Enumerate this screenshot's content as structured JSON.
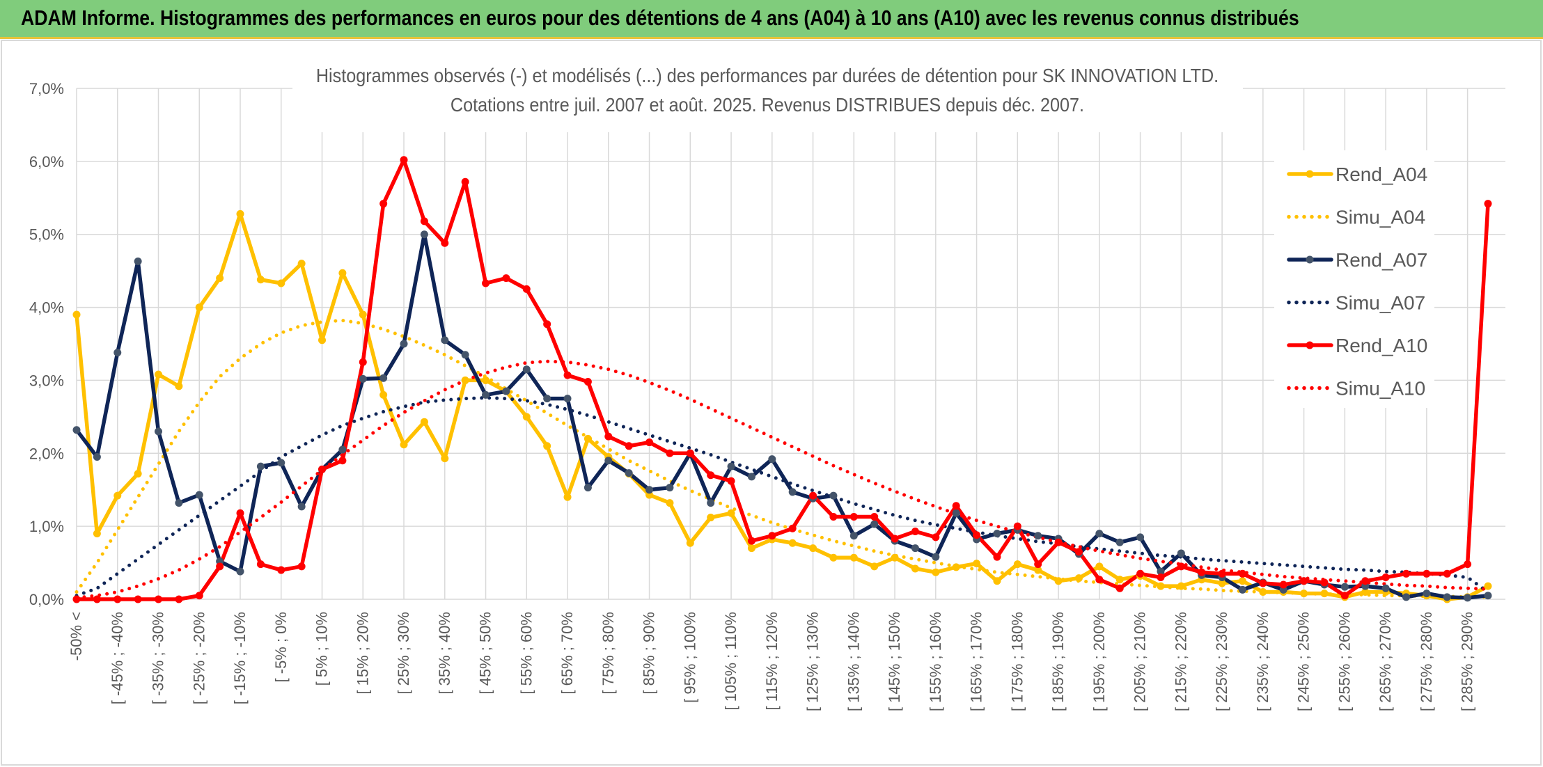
{
  "header": {
    "title": "ADAM Informe. Histogrammes des performances en euros pour des détentions de 4 ans (A04) à 10 ans (A10) avec les revenus connus distribués"
  },
  "chart_data": {
    "type": "line",
    "title": "Histogrammes observés (-) et modélisés (...) des performances par durées de détention pour SK INNOVATION LTD.",
    "subtitle": "Cotations entre juil. 2007 et août. 2025. Revenus DISTRIBUES depuis déc. 2007.",
    "categories": [
      "-50% <",
      null,
      "[ -45% ; -40%",
      null,
      "[ -35% ; -30%",
      null,
      "[ -25% ; -20%",
      null,
      "[ -15% ; -10%",
      null,
      "[ -5% ; 0%",
      null,
      "[ 5% ; 10%",
      null,
      "[ 15% ; 20%",
      null,
      "[ 25% ; 30%",
      null,
      "[ 35% ; 40%",
      null,
      "[ 45% ; 50%",
      null,
      "[ 55% ; 60%",
      null,
      "[ 65% ; 70%",
      null,
      "[ 75% ; 80%",
      null,
      "[ 85% ; 90%",
      null,
      "[ 95% ; 100%",
      null,
      "[ 105% ; 110%",
      null,
      "[ 115% ; 120%",
      null,
      "[ 125% ; 130%",
      null,
      "[ 135% ; 140%",
      null,
      "[ 145% ; 150%",
      null,
      "[ 155% ; 160%",
      null,
      "[ 165% ; 170%",
      null,
      "[ 175% ; 180%",
      null,
      "[ 185% ; 190%",
      null,
      "[ 195% ; 200%",
      null,
      "[ 205% ; 210%",
      null,
      "[ 215% ; 220%",
      null,
      "[ 225% ; 230%",
      null,
      "[ 235% ; 240%",
      null,
      "[ 245% ; 250%",
      null,
      "[ 255% ; 260%",
      null,
      "[ 265% ; 270%",
      null,
      "[ 275% ; 280%",
      null,
      "[ 285% ; 290%",
      null
    ],
    "series": [
      {
        "name": "Rend_A04",
        "color": "#FFC000",
        "line_style": "solid",
        "values": [
          3.9,
          0.9,
          1.42,
          1.72,
          3.08,
          2.92,
          4.0,
          4.4,
          5.28,
          4.38,
          4.33,
          4.6,
          3.55,
          4.47,
          3.9,
          2.8,
          2.12,
          2.43,
          1.93,
          3.0,
          3.0,
          2.85,
          2.5,
          2.1,
          1.4,
          2.2,
          1.95,
          1.72,
          1.43,
          1.32,
          0.77,
          1.12,
          1.18,
          0.7,
          0.82,
          0.77,
          0.7,
          0.57,
          0.57,
          0.45,
          0.57,
          0.42,
          0.37,
          0.44,
          0.49,
          0.25,
          0.48,
          0.4,
          0.25,
          0.29,
          0.45,
          0.27,
          0.32,
          0.18,
          0.18,
          0.27,
          0.22,
          0.25,
          0.1,
          0.1,
          0.08,
          0.08,
          0.03,
          0.1,
          0.1,
          0.08,
          0.05,
          0.0,
          0.03,
          0.18
        ]
      },
      {
        "name": "Simu_A04",
        "color": "#FFC000",
        "line_style": "dotted",
        "values": [
          0.1,
          0.5,
          0.95,
          1.4,
          1.85,
          2.3,
          2.7,
          3.05,
          3.3,
          3.5,
          3.65,
          3.75,
          3.8,
          3.82,
          3.78,
          3.7,
          3.6,
          3.48,
          3.35,
          3.2,
          3.05,
          2.88,
          2.72,
          2.55,
          2.38,
          2.22,
          2.06,
          1.9,
          1.76,
          1.62,
          1.49,
          1.37,
          1.25,
          1.15,
          1.05,
          0.96,
          0.88,
          0.8,
          0.73,
          0.66,
          0.6,
          0.55,
          0.5,
          0.45,
          0.41,
          0.37,
          0.34,
          0.31,
          0.28,
          0.25,
          0.23,
          0.21,
          0.19,
          0.17,
          0.15,
          0.14,
          0.12,
          0.11,
          0.1,
          0.09,
          0.08,
          0.07,
          0.07,
          0.06,
          0.05,
          0.05,
          0.04,
          0.04,
          0.03,
          0.03
        ]
      },
      {
        "name": "Rend_A07",
        "color": "#0F2557",
        "line_style": "solid",
        "values": [
          2.32,
          1.95,
          3.38,
          4.63,
          2.3,
          1.32,
          1.43,
          0.52,
          0.38,
          1.82,
          1.87,
          1.27,
          1.78,
          2.05,
          3.02,
          3.03,
          3.5,
          5.0,
          3.55,
          3.35,
          2.8,
          2.85,
          3.15,
          2.75,
          2.75,
          1.53,
          1.9,
          1.73,
          1.5,
          1.53,
          2.0,
          1.32,
          1.82,
          1.68,
          1.92,
          1.47,
          1.38,
          1.42,
          0.87,
          1.03,
          0.8,
          0.7,
          0.58,
          1.18,
          0.82,
          0.9,
          0.95,
          0.87,
          0.83,
          0.62,
          0.9,
          0.78,
          0.85,
          0.38,
          0.63,
          0.33,
          0.3,
          0.13,
          0.23,
          0.13,
          0.25,
          0.2,
          0.17,
          0.18,
          0.15,
          0.03,
          0.08,
          0.03,
          0.02,
          0.05
        ]
      },
      {
        "name": "Simu_A07",
        "color": "#0F2557",
        "line_style": "dotted",
        "values": [
          0.05,
          0.15,
          0.35,
          0.55,
          0.75,
          0.95,
          1.15,
          1.35,
          1.55,
          1.75,
          1.95,
          2.1,
          2.25,
          2.38,
          2.48,
          2.57,
          2.64,
          2.7,
          2.73,
          2.75,
          2.76,
          2.75,
          2.72,
          2.67,
          2.6,
          2.52,
          2.43,
          2.34,
          2.25,
          2.16,
          2.07,
          1.98,
          1.88,
          1.78,
          1.68,
          1.58,
          1.49,
          1.4,
          1.31,
          1.23,
          1.15,
          1.08,
          1.02,
          0.97,
          0.92,
          0.87,
          0.83,
          0.79,
          0.76,
          0.72,
          0.69,
          0.66,
          0.63,
          0.6,
          0.58,
          0.55,
          0.53,
          0.51,
          0.49,
          0.47,
          0.45,
          0.43,
          0.41,
          0.4,
          0.38,
          0.37,
          0.35,
          0.33,
          0.3,
          0.1
        ]
      },
      {
        "name": "Rend_A10",
        "color": "#FF0000",
        "line_style": "solid",
        "values": [
          0.0,
          0.0,
          0.0,
          0.0,
          0.0,
          0.0,
          0.05,
          0.45,
          1.18,
          0.48,
          0.4,
          0.45,
          1.78,
          1.9,
          3.25,
          5.42,
          6.02,
          5.18,
          4.88,
          5.72,
          4.33,
          4.4,
          4.25,
          3.77,
          3.07,
          2.98,
          2.23,
          2.1,
          2.15,
          2.0,
          2.0,
          1.7,
          1.62,
          0.8,
          0.87,
          0.97,
          1.42,
          1.13,
          1.13,
          1.13,
          0.83,
          0.93,
          0.85,
          1.28,
          0.88,
          0.58,
          1.0,
          0.48,
          0.78,
          0.65,
          0.27,
          0.15,
          0.35,
          0.3,
          0.45,
          0.37,
          0.35,
          0.35,
          0.22,
          0.2,
          0.25,
          0.23,
          0.05,
          0.25,
          0.3,
          0.35,
          0.35,
          0.35,
          0.48,
          5.42
        ]
      },
      {
        "name": "Simu_A10",
        "color": "#FF0000",
        "line_style": "dotted",
        "values": [
          0.02,
          0.05,
          0.1,
          0.18,
          0.28,
          0.4,
          0.55,
          0.72,
          0.92,
          1.12,
          1.33,
          1.55,
          1.77,
          1.98,
          2.18,
          2.38,
          2.56,
          2.72,
          2.87,
          3.0,
          3.1,
          3.18,
          3.24,
          3.26,
          3.25,
          3.21,
          3.15,
          3.07,
          2.97,
          2.86,
          2.74,
          2.61,
          2.48,
          2.35,
          2.22,
          2.09,
          1.96,
          1.83,
          1.71,
          1.59,
          1.48,
          1.37,
          1.27,
          1.17,
          1.08,
          1.0,
          0.92,
          0.85,
          0.78,
          0.72,
          0.66,
          0.61,
          0.56,
          0.52,
          0.48,
          0.44,
          0.4,
          0.37,
          0.34,
          0.31,
          0.29,
          0.27,
          0.25,
          0.23,
          0.21,
          0.19,
          0.18,
          0.16,
          0.15,
          0.14
        ]
      }
    ],
    "ylim": [
      0,
      7
    ],
    "yticks": [
      {
        "value": 0,
        "label": "0,0%"
      },
      {
        "value": 1,
        "label": "1,0%"
      },
      {
        "value": 2,
        "label": "2,0%"
      },
      {
        "value": 3,
        "label": "3,0%"
      },
      {
        "value": 4,
        "label": "4,0%"
      },
      {
        "value": 5,
        "label": "5,0%"
      },
      {
        "value": 6,
        "label": "6,0%"
      },
      {
        "value": 7,
        "label": "7,0%"
      }
    ],
    "grid": true,
    "legend": "right"
  }
}
